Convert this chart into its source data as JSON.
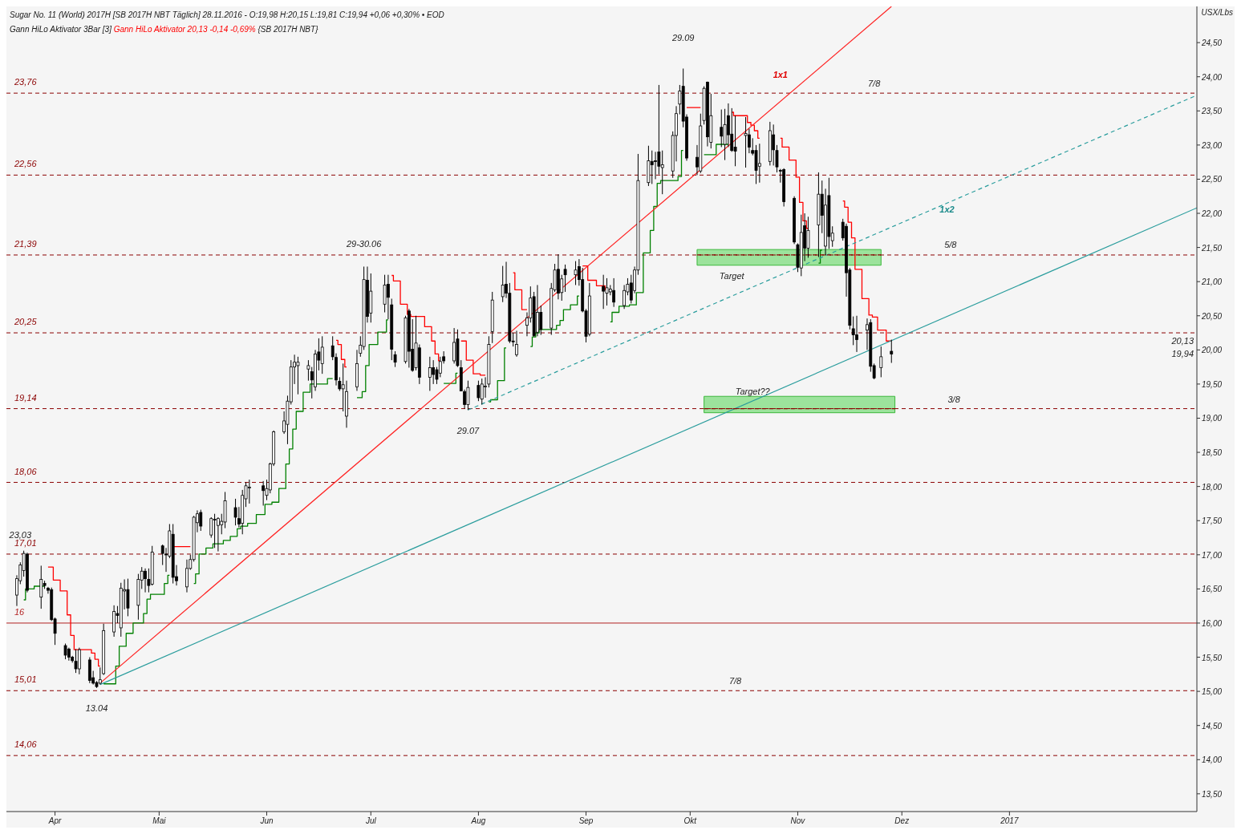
{
  "chart_data": {
    "type": "candlestick",
    "title": "Sugar No. 11 (World) 2017H [SB 2017H NBT Täglich] 28.11.2016 - O:19,98 H:20,15 L:19,81 C:19,94 +0,06 +0,30% • EOD",
    "subtitle": "Gann HiLo Aktivator 3Bar [3]",
    "ylabel": "USX/Lbs",
    "x": [
      "2016-03-21",
      "2016-03-22",
      "2016-03-23",
      "2016-03-24",
      "2016-03-28",
      "2016-03-29",
      "2016-03-30",
      "2016-03-31",
      "2016-04-01",
      "2016-04-04",
      "2016-04-05",
      "2016-04-06",
      "2016-04-07",
      "2016-04-08",
      "2016-04-11",
      "2016-04-12",
      "2016-04-13",
      "2016-04-14",
      "2016-04-15",
      "2016-04-18",
      "2016-04-19",
      "2016-04-20",
      "2016-04-21",
      "2016-04-22",
      "2016-04-25",
      "2016-04-26",
      "2016-04-27",
      "2016-04-28",
      "2016-04-29",
      "2016-05-02",
      "2016-05-03",
      "2016-05-04",
      "2016-05-05",
      "2016-05-06",
      "2016-05-09",
      "2016-05-10",
      "2016-05-11",
      "2016-05-12",
      "2016-05-13",
      "2016-05-16",
      "2016-05-17",
      "2016-05-18",
      "2016-05-19",
      "2016-05-20",
      "2016-05-23",
      "2016-05-24",
      "2016-05-25",
      "2016-05-26",
      "2016-05-27",
      "2016-05-31",
      "2016-06-01",
      "2016-06-02",
      "2016-06-03",
      "2016-06-06",
      "2016-06-07",
      "2016-06-08",
      "2016-06-09",
      "2016-06-10",
      "2016-06-13",
      "2016-06-14",
      "2016-06-15",
      "2016-06-16",
      "2016-06-17",
      "2016-06-20",
      "2016-06-21",
      "2016-06-22",
      "2016-06-23",
      "2016-06-24",
      "2016-06-27",
      "2016-06-28",
      "2016-06-29",
      "2016-06-30",
      "2016-07-01",
      "2016-07-05",
      "2016-07-06",
      "2016-07-07",
      "2016-07-08",
      "2016-07-11",
      "2016-07-12",
      "2016-07-13",
      "2016-07-14",
      "2016-07-15",
      "2016-07-18",
      "2016-07-19",
      "2016-07-20",
      "2016-07-21",
      "2016-07-22",
      "2016-07-25",
      "2016-07-26",
      "2016-07-27",
      "2016-07-28",
      "2016-07-29",
      "2016-08-01",
      "2016-08-02",
      "2016-08-03",
      "2016-08-04",
      "2016-08-05",
      "2016-08-08",
      "2016-08-09",
      "2016-08-10",
      "2016-08-11",
      "2016-08-12",
      "2016-08-15",
      "2016-08-16",
      "2016-08-17",
      "2016-08-18",
      "2016-08-19",
      "2016-08-22",
      "2016-08-23",
      "2016-08-24",
      "2016-08-25",
      "2016-08-26",
      "2016-08-29",
      "2016-08-30",
      "2016-08-31",
      "2016-09-01",
      "2016-09-02",
      "2016-09-06",
      "2016-09-07",
      "2016-09-08",
      "2016-09-09",
      "2016-09-12",
      "2016-09-13",
      "2016-09-14",
      "2016-09-15",
      "2016-09-16",
      "2016-09-19",
      "2016-09-20",
      "2016-09-21",
      "2016-09-22",
      "2016-09-23",
      "2016-09-26",
      "2016-09-27",
      "2016-09-28",
      "2016-09-29",
      "2016-09-30",
      "2016-10-03",
      "2016-10-04",
      "2016-10-05",
      "2016-10-06",
      "2016-10-07",
      "2016-10-10",
      "2016-10-11",
      "2016-10-12",
      "2016-10-13",
      "2016-10-14",
      "2016-10-17",
      "2016-10-18",
      "2016-10-19",
      "2016-10-20",
      "2016-10-21",
      "2016-10-24",
      "2016-10-25",
      "2016-10-26",
      "2016-10-27",
      "2016-10-28",
      "2016-10-31",
      "2016-11-01",
      "2016-11-02",
      "2016-11-03",
      "2016-11-04",
      "2016-11-07",
      "2016-11-08",
      "2016-11-09",
      "2016-11-10",
      "2016-11-11",
      "2016-11-14",
      "2016-11-15",
      "2016-11-16",
      "2016-11-17",
      "2016-11-18",
      "2016-11-21",
      "2016-11-22",
      "2016-11-23",
      "2016-11-25",
      "2016-11-28"
    ],
    "ohlc": [
      [
        16.41,
        16.7,
        16.25,
        16.65
      ],
      [
        16.62,
        16.89,
        16.57,
        16.85
      ],
      [
        16.77,
        17.06,
        16.68,
        17.02
      ],
      [
        17.01,
        17.03,
        16.45,
        16.48
      ],
      [
        16.38,
        16.84,
        16.21,
        16.64
      ],
      [
        16.58,
        16.62,
        16.5,
        16.55
      ],
      [
        16.51,
        16.53,
        16.43,
        16.48
      ],
      [
        16.49,
        16.52,
        16.03,
        16.05
      ],
      [
        16.06,
        16.08,
        15.68,
        15.85
      ],
      [
        15.67,
        15.7,
        15.47,
        15.53
      ],
      [
        15.62,
        15.64,
        15.45,
        15.5
      ],
      [
        15.5,
        15.52,
        15.42,
        15.45
      ],
      [
        15.44,
        15.62,
        15.27,
        15.33
      ],
      [
        15.33,
        15.64,
        15.25,
        15.61
      ],
      [
        15.46,
        15.5,
        15.12,
        15.16
      ],
      [
        15.2,
        15.3,
        15.1,
        15.12
      ],
      [
        15.13,
        15.15,
        15.05,
        15.07
      ],
      [
        15.12,
        15.35,
        15.1,
        15.17
      ],
      [
        15.26,
        15.99,
        15.24,
        15.89
      ],
      [
        15.87,
        16.26,
        15.8,
        16.17
      ],
      [
        16.14,
        16.25,
        16.0,
        16.11
      ],
      [
        15.93,
        16.59,
        15.8,
        16.51
      ],
      [
        16.47,
        16.64,
        16.2,
        16.49
      ],
      [
        16.49,
        16.65,
        16.1,
        16.22
      ],
      [
        16.26,
        16.72,
        16.05,
        16.64
      ],
      [
        16.63,
        16.82,
        16.5,
        16.76
      ],
      [
        16.76,
        16.8,
        16.45,
        16.65
      ],
      [
        16.64,
        16.8,
        16.45,
        16.55
      ],
      [
        16.57,
        17.13,
        16.55,
        17.04
      ],
      [
        17.13,
        17.15,
        16.85,
        17.02
      ],
      [
        17.01,
        17.1,
        16.75,
        17.0
      ],
      [
        16.98,
        17.45,
        16.95,
        17.35
      ],
      [
        17.3,
        17.45,
        16.58,
        16.67
      ],
      [
        16.68,
        16.85,
        16.55,
        16.62
      ],
      [
        16.53,
        16.93,
        16.45,
        16.8
      ],
      [
        16.8,
        17.0,
        16.78,
        16.93
      ],
      [
        16.93,
        17.57,
        16.9,
        17.55
      ],
      [
        17.47,
        17.65,
        17.33,
        17.6
      ],
      [
        17.62,
        17.66,
        17.35,
        17.42
      ],
      [
        17.29,
        17.55,
        17.25,
        17.53
      ],
      [
        17.52,
        17.6,
        17.1,
        17.51
      ],
      [
        17.43,
        17.55,
        17.05,
        17.53
      ],
      [
        17.44,
        17.6,
        17.3,
        17.49
      ],
      [
        17.48,
        17.92,
        17.39,
        17.79
      ],
      [
        17.69,
        17.82,
        17.43,
        17.55
      ],
      [
        17.53,
        17.7,
        17.4,
        17.45
      ],
      [
        17.46,
        17.95,
        17.3,
        17.87
      ],
      [
        17.82,
        18.06,
        17.7,
        18.01
      ],
      [
        17.98,
        18.1,
        17.75,
        17.99
      ],
      [
        18.01,
        18.08,
        17.72,
        17.94
      ],
      [
        17.87,
        18.1,
        17.8,
        17.97
      ],
      [
        17.95,
        18.35,
        17.9,
        18.33
      ],
      [
        18.33,
        18.82,
        18.3,
        18.8
      ],
      [
        18.8,
        19.1,
        18.77,
        18.96
      ],
      [
        18.91,
        19.33,
        18.62,
        19.25
      ],
      [
        19.24,
        19.85,
        19.2,
        19.75
      ],
      [
        19.75,
        19.93,
        19.5,
        19.82
      ],
      [
        19.77,
        19.9,
        19.35,
        19.82
      ],
      [
        19.72,
        19.85,
        19.55,
        19.77
      ],
      [
        19.68,
        19.75,
        19.29,
        19.56
      ],
      [
        19.46,
        20.0,
        19.4,
        19.94
      ],
      [
        19.97,
        20.17,
        19.7,
        19.85
      ],
      [
        19.8,
        20.2,
        19.65,
        20.04
      ],
      [
        20.06,
        20.2,
        19.85,
        19.9
      ],
      [
        19.89,
        19.95,
        19.48,
        19.56
      ],
      [
        19.54,
        19.6,
        19.4,
        19.43
      ],
      [
        19.43,
        19.8,
        19.1,
        19.49
      ],
      [
        19.03,
        19.55,
        18.86,
        19.39
      ],
      [
        19.46,
        20.0,
        19.4,
        19.8
      ],
      [
        19.95,
        20.2,
        19.9,
        20.07
      ],
      [
        20.05,
        21.22,
        20.0,
        21.03
      ],
      [
        21.02,
        21.22,
        20.4,
        20.49
      ],
      [
        20.54,
        21.12,
        20.4,
        20.86
      ],
      [
        20.67,
        21.1,
        20.55,
        20.95
      ],
      [
        20.96,
        21.1,
        20.45,
        20.77
      ],
      [
        20.66,
        20.75,
        19.85,
        20.01
      ],
      [
        19.93,
        19.98,
        19.75,
        19.82
      ],
      [
        19.83,
        20.5,
        19.8,
        20.47
      ],
      [
        20.57,
        20.6,
        19.74,
        19.98
      ],
      [
        20.01,
        20.45,
        19.68,
        19.7
      ],
      [
        19.74,
        20.5,
        19.7,
        20.1
      ],
      [
        20.03,
        20.08,
        19.5,
        19.6
      ],
      [
        19.6,
        19.9,
        19.4,
        19.74
      ],
      [
        19.74,
        19.85,
        19.5,
        19.64
      ],
      [
        19.71,
        19.75,
        19.5,
        19.57
      ],
      [
        19.66,
        19.9,
        19.6,
        19.83
      ],
      [
        19.9,
        19.98,
        19.8,
        19.84
      ],
      [
        19.84,
        20.32,
        19.8,
        20.11
      ],
      [
        20.16,
        20.3,
        19.75,
        19.77
      ],
      [
        19.74,
        19.85,
        19.4,
        19.4
      ],
      [
        19.39,
        19.42,
        19.14,
        19.2
      ],
      [
        19.2,
        19.55,
        19.12,
        19.45
      ],
      [
        19.48,
        19.55,
        19.25,
        19.3
      ],
      [
        19.28,
        19.58,
        19.2,
        19.5
      ],
      [
        19.47,
        19.6,
        19.3,
        19.47
      ],
      [
        19.5,
        20.2,
        19.45,
        20.08
      ],
      [
        20.27,
        20.85,
        20.1,
        20.73
      ],
      [
        20.78,
        21.23,
        20.7,
        20.95
      ],
      [
        20.96,
        21.29,
        20.76,
        20.83
      ],
      [
        20.83,
        20.98,
        20.1,
        20.13
      ],
      [
        20.13,
        20.25,
        20.05,
        20.12
      ],
      [
        19.93,
        20.28,
        19.9,
        20.08
      ],
      [
        20.36,
        20.55,
        20.2,
        20.47
      ],
      [
        20.47,
        20.93,
        20.4,
        20.76
      ],
      [
        20.78,
        20.85,
        20.19,
        20.21
      ],
      [
        20.26,
        20.95,
        20.2,
        20.55
      ],
      [
        20.55,
        20.65,
        20.22,
        20.3
      ],
      [
        20.32,
        20.98,
        20.22,
        20.9
      ],
      [
        20.88,
        21.26,
        20.85,
        21.17
      ],
      [
        21.18,
        21.4,
        20.74,
        20.83
      ],
      [
        20.84,
        21.1,
        20.72,
        21.04
      ],
      [
        21.18,
        21.25,
        20.85,
        21.1
      ],
      [
        21.1,
        21.3,
        20.95,
        21.17
      ],
      [
        21.22,
        21.33,
        20.94,
        21.03
      ],
      [
        21.03,
        21.2,
        20.55,
        20.57
      ],
      [
        20.57,
        20.6,
        20.11,
        20.2
      ],
      [
        20.23,
        20.98,
        20.2,
        20.79
      ],
      [
        20.93,
        21.1,
        20.6,
        20.86
      ],
      [
        20.83,
        21.05,
        20.65,
        20.91
      ],
      [
        20.85,
        20.95,
        20.8,
        20.89
      ],
      [
        20.87,
        21.05,
        20.63,
        20.7
      ],
      [
        20.65,
        20.95,
        20.6,
        20.87
      ],
      [
        20.85,
        21.05,
        20.8,
        20.96
      ],
      [
        20.98,
        21.1,
        20.68,
        20.73
      ],
      [
        20.87,
        21.22,
        20.83,
        21.17
      ],
      [
        21.17,
        22.87,
        21.1,
        22.48
      ],
      [
        22.45,
        22.99,
        22.4,
        22.77
      ],
      [
        22.76,
        22.92,
        22.43,
        22.71
      ],
      [
        22.77,
        22.9,
        22.5,
        22.76
      ],
      [
        22.9,
        23.88,
        22.57,
        22.69
      ],
      [
        22.67,
        22.92,
        22.28,
        22.71
      ],
      [
        22.62,
        23.2,
        22.52,
        23.14
      ],
      [
        23.14,
        23.57,
        22.76,
        23.46
      ],
      [
        23.6,
        23.88,
        23.45,
        23.79
      ],
      [
        23.86,
        24.12,
        23.26,
        23.35
      ],
      [
        23.41,
        23.45,
        22.77,
        22.81
      ],
      [
        22.82,
        23.0,
        22.56,
        22.68
      ],
      [
        22.62,
        23.46,
        22.59,
        23.28
      ],
      [
        23.36,
        23.86,
        23.3,
        23.83
      ],
      [
        23.92,
        23.93,
        22.98,
        23.12
      ],
      [
        23.04,
        23.75,
        22.95,
        23.43
      ],
      [
        23.26,
        23.52,
        22.97,
        23.13
      ],
      [
        23.01,
        23.53,
        22.78,
        23.3
      ],
      [
        23.43,
        23.61,
        22.97,
        23.15
      ],
      [
        23.16,
        23.54,
        22.9,
        22.92
      ],
      [
        22.97,
        23.43,
        22.69,
        22.91
      ],
      [
        23.14,
        23.41,
        22.67,
        23.17
      ],
      [
        23.15,
        23.24,
        22.88,
        22.97
      ],
      [
        22.92,
        23.1,
        22.85,
        22.88
      ],
      [
        22.92,
        23.0,
        22.43,
        22.63
      ],
      [
        22.69,
        23.02,
        22.45,
        22.73
      ],
      [
        22.76,
        23.34,
        22.7,
        23.21
      ],
      [
        23.15,
        23.3,
        22.7,
        22.93
      ],
      [
        22.92,
        23.0,
        22.6,
        22.68
      ],
      [
        22.63,
        22.65,
        22.45,
        22.62
      ],
      [
        22.64,
        22.66,
        22.1,
        22.17
      ],
      [
        22.22,
        22.25,
        21.55,
        21.58
      ],
      [
        21.54,
        21.56,
        21.14,
        21.21
      ],
      [
        21.2,
        21.98,
        21.08,
        21.72
      ],
      [
        21.82,
        22.0,
        21.3,
        21.49
      ],
      [
        21.49,
        21.95,
        21.35,
        21.75
      ],
      [
        21.83,
        22.6,
        21.36,
        22.28
      ],
      [
        22.28,
        22.48,
        21.71,
        21.97
      ],
      [
        21.52,
        22.36,
        21.39,
        22.12
      ],
      [
        22.26,
        22.52,
        21.48,
        21.66
      ],
      [
        21.6,
        21.81,
        21.51,
        21.71
      ],
      [
        21.87,
        21.92,
        21.6,
        21.64
      ],
      [
        21.81,
        21.85,
        20.78,
        21.13
      ],
      [
        21.17,
        21.2,
        20.3,
        20.36
      ],
      [
        20.31,
        20.49,
        20.07,
        20.22
      ],
      [
        20.22,
        20.5,
        19.97,
        20.15
      ],
      [
        20.29,
        20.46,
        20.0,
        20.37
      ],
      [
        20.4,
        20.45,
        19.68,
        19.76
      ],
      [
        19.77,
        19.8,
        19.57,
        19.59
      ],
      [
        19.74,
        20.05,
        19.6,
        19.9
      ],
      [
        19.98,
        20.15,
        19.81,
        19.94
      ]
    ],
    "series": [
      {
        "type": "step",
        "color": "#008000",
        "values": [
          null,
          null,
          16.34,
          16.5,
          16.54,
          16.54,
          null,
          null,
          null,
          null,
          null,
          null,
          null,
          null,
          null,
          null,
          null,
          null,
          15.11,
          15.11,
          15.37,
          15.66,
          15.66,
          15.85,
          16.0,
          16.0,
          16.14,
          16.35,
          16.42,
          16.42,
          16.58,
          16.7,
          null,
          null,
          null,
          null,
          16.58,
          16.72,
          17.01,
          17.1,
          17.16,
          17.16,
          17.16,
          17.21,
          17.27,
          17.38,
          17.42,
          17.42,
          17.46,
          17.59,
          17.74,
          17.74,
          17.77,
          17.97,
          18.33,
          18.55,
          18.84,
          19.1,
          19.38,
          19.5,
          19.5,
          19.5,
          19.5,
          19.58,
          null,
          null,
          null,
          null,
          19.3,
          19.3,
          19.39,
          19.77,
          20.08,
          20.26,
          20.44,
          null,
          null,
          null,
          null,
          null,
          null,
          null,
          null,
          null,
          null,
          null,
          19.51,
          19.51,
          19.66,
          null,
          null,
          null,
          null,
          null,
          null,
          19.24,
          19.27,
          19.55,
          20.03,
          null,
          null,
          null,
          null,
          20.05,
          20.19,
          20.25,
          20.3,
          20.3,
          20.3,
          20.36,
          20.43,
          20.59,
          20.66,
          20.79,
          null,
          null,
          null,
          null,
          null,
          20.41,
          20.55,
          20.64,
          20.64,
          20.66,
          20.66,
          20.84,
          21.42,
          21.75,
          22.1,
          22.44,
          22.48,
          22.48,
          22.48,
          22.54,
          22.92,
          null,
          null,
          null,
          22.86,
          22.86,
          22.86,
          23.01,
          23.01,
          23.01,
          null,
          null,
          null,
          null,
          null,
          null,
          null,
          null,
          null,
          null,
          null,
          null,
          null,
          null,
          null,
          null,
          null,
          21.27,
          21.46,
          null,
          null,
          null,
          null,
          null,
          null,
          null,
          null,
          null,
          null,
          null,
          null,
          null
        ]
      },
      {
        "type": "step",
        "name": "Gann HiLo Aktivator 20,13 -0,14 -0,69%",
        "color": "#ff0000",
        "values": [
          null,
          null,
          null,
          null,
          null,
          null,
          16.82,
          16.82,
          16.63,
          16.47,
          16.12,
          15.82,
          15.61,
          15.61,
          15.61,
          15.56,
          15.47,
          15.37,
          null,
          null,
          null,
          null,
          null,
          null,
          null,
          null,
          null,
          null,
          null,
          null,
          null,
          null,
          17.12,
          17.12,
          17.12,
          17.12,
          null,
          null,
          null,
          null,
          null,
          null,
          null,
          null,
          null,
          null,
          null,
          null,
          null,
          null,
          null,
          null,
          null,
          null,
          null,
          null,
          null,
          null,
          null,
          null,
          null,
          null,
          null,
          null,
          20.14,
          20.08,
          19.86,
          19.75,
          null,
          null,
          null,
          null,
          null,
          null,
          null,
          21.09,
          21.01,
          20.67,
          20.52,
          20.49,
          20.49,
          20.49,
          20.34,
          20.13,
          19.94,
          19.84,
          null,
          null,
          null,
          20.13,
          20.13,
          19.85,
          19.65,
          19.63,
          19.63,
          null,
          null,
          null,
          null,
          null,
          21.13,
          20.88,
          20.59,
          null,
          null,
          null,
          null,
          null,
          null,
          null,
          null,
          null,
          null,
          null,
          21.23,
          21.23,
          21.02,
          20.94,
          20.88,
          null,
          null,
          null,
          null,
          null,
          null,
          null,
          null,
          null,
          null,
          null,
          null,
          null,
          null,
          null,
          null,
          23.55,
          23.55,
          23.55,
          null,
          null,
          null,
          null,
          null,
          null,
          23.48,
          23.43,
          23.43,
          23.33,
          23.29,
          23.21,
          23.1,
          null,
          null,
          null,
          23.1,
          22.97,
          22.78,
          22.53,
          22.16,
          21.89,
          21.78,
          null,
          null,
          null,
          null,
          null,
          22.18,
          22.09,
          21.87,
          21.64,
          21.18,
          20.75,
          20.51,
          20.48,
          20.29,
          20.13
        ]
      },
      {
        "type": "line",
        "color": "#ff2020",
        "x": [
          "2016-04-14",
          "2016-11-28"
        ],
        "values": [
          15.12,
          25.03
        ]
      },
      {
        "type": "line",
        "color": "#2a9d9d",
        "x": [
          "2016-04-14",
          "2017-02-24"
        ],
        "values": [
          15.1,
          22.08
        ]
      },
      {
        "type": "line",
        "color": "#2a9d9d",
        "line_style": "dashed",
        "x": [
          "2016-07-29",
          "2017-02-24"
        ],
        "values": [
          19.12,
          23.73
        ]
      },
      {
        "type": "line",
        "color": "#8b0000",
        "line_style": "dashed",
        "x": [
          "2016-10-03",
          "2016-11-25"
        ],
        "values": [
          21.39,
          21.39
        ],
        "lower": [
          21.24,
          21.24
        ],
        "upper": [
          21.47,
          21.47
        ]
      },
      {
        "type": "line",
        "color": "#8b0000",
        "line_style": "dashed",
        "x": [
          "2016-10-05",
          "2016-11-29"
        ],
        "values": [
          19.14,
          19.14
        ],
        "lower": [
          19.08,
          19.08
        ],
        "upper": [
          19.32,
          19.32
        ]
      }
    ],
    "xlim": [
      "2016-03-18",
      "2017-02-24"
    ],
    "xticks": [
      {
        "value": "2016-04-01",
        "label": "Apr"
      },
      {
        "value": "2016-05-01",
        "label": "Mai"
      },
      {
        "value": "2016-06-01",
        "label": "Jun"
      },
      {
        "value": "2016-07-01",
        "label": "Jul"
      },
      {
        "value": "2016-08-01",
        "label": "Aug"
      },
      {
        "value": "2016-09-01",
        "label": "Sep"
      },
      {
        "value": "2016-10-01",
        "label": "Okt"
      },
      {
        "value": "2016-11-01",
        "label": "Nov"
      },
      {
        "value": "2016-12-01",
        "label": "Dez"
      },
      {
        "value": "2017-01-01",
        "label": "2017"
      }
    ],
    "ylim": [
      13.24,
      25.03
    ],
    "yticks": [
      {
        "value": 13.5,
        "label": "13,50"
      },
      {
        "value": 14,
        "label": "14,00"
      },
      {
        "value": 14.5,
        "label": "14,50"
      },
      {
        "value": 15,
        "label": "15,00"
      },
      {
        "value": 15.5,
        "label": "15,50"
      },
      {
        "value": 16,
        "label": "16,00"
      },
      {
        "value": 16.5,
        "label": "16,50"
      },
      {
        "value": 17,
        "label": "17,00"
      },
      {
        "value": 17.5,
        "label": "17,50"
      },
      {
        "value": 18,
        "label": "18,00"
      },
      {
        "value": 18.5,
        "label": "18,50"
      },
      {
        "value": 19,
        "label": "19,00"
      },
      {
        "value": 19.5,
        "label": "19,50"
      },
      {
        "value": 20,
        "label": "20,00"
      },
      {
        "value": 20.5,
        "label": "20,50"
      },
      {
        "value": 21,
        "label": "21,00"
      },
      {
        "value": 21.5,
        "label": "21,50"
      },
      {
        "value": 22,
        "label": "22,00"
      },
      {
        "value": 22.5,
        "label": "22,50"
      },
      {
        "value": 23,
        "label": "23,00"
      },
      {
        "value": 23.5,
        "label": "23,50"
      },
      {
        "value": 24,
        "label": "24,00"
      },
      {
        "value": 24.5,
        "label": "24,50"
      }
    ],
    "ref_lines": [
      {
        "axis": "y",
        "value": 23.76,
        "label": "23,76",
        "color": "#8b0000",
        "line_style": "dashed"
      },
      {
        "axis": "y",
        "value": 22.56,
        "label": "22,56",
        "color": "#8b0000",
        "line_style": "dashed"
      },
      {
        "axis": "y",
        "value": 21.39,
        "label": "21,39",
        "color": "#8b0000",
        "line_style": "dashed"
      },
      {
        "axis": "y",
        "value": 20.25,
        "label": "20,25",
        "color": "#8b0000",
        "line_style": "dashed"
      },
      {
        "axis": "y",
        "value": 19.14,
        "label": "19,14",
        "color": "#8b0000",
        "line_style": "dashed"
      },
      {
        "axis": "y",
        "value": 18.06,
        "label": "18,06",
        "color": "#8b0000",
        "line_style": "dashed"
      },
      {
        "axis": "y",
        "value": 17.01,
        "label": "17,01",
        "color": "#8b0000",
        "line_style": "dashed"
      },
      {
        "axis": "y",
        "value": 16,
        "label": "16",
        "color": "#b22222",
        "line_style": "solid"
      },
      {
        "axis": "y",
        "value": 15.01,
        "label": "15,01",
        "color": "#8b0000",
        "line_style": "dashed"
      },
      {
        "axis": "y",
        "value": 14.06,
        "label": "14,06",
        "color": "#8b0000",
        "line_style": "dashed"
      }
    ],
    "annotations": [
      "{SB 2017H NBT}",
      "29.09",
      "29-30.06",
      "29.07",
      "13.04",
      "23,03",
      "1x1",
      "1x2",
      "7/8",
      "5/8",
      "3/8",
      "7/8",
      "20,13",
      "19,94",
      "Target",
      "Target??"
    ]
  }
}
